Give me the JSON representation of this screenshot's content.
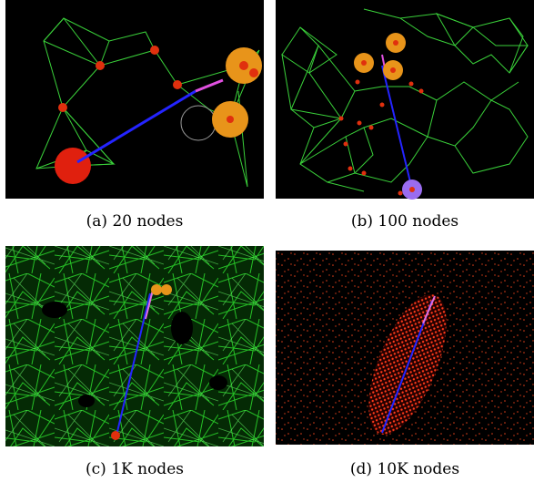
{
  "panels": [
    {
      "caption": "(a) 20 nodes"
    },
    {
      "caption": "(b) 100 nodes"
    },
    {
      "caption": "(c) 1K nodes"
    },
    {
      "caption": "(d) 10K nodes"
    }
  ]
}
